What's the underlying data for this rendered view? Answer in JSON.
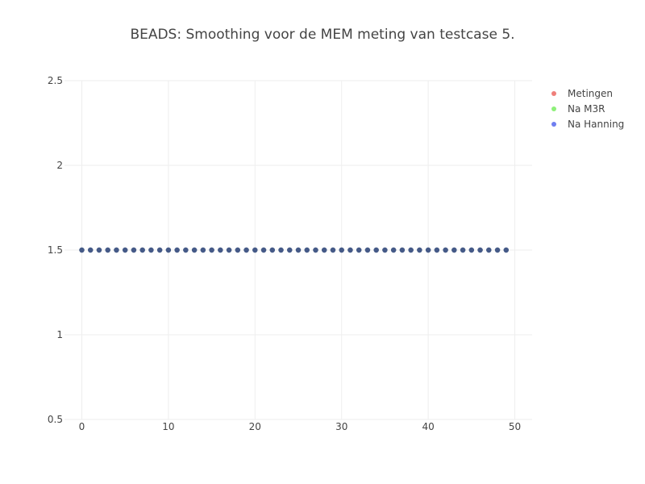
{
  "chart_data": {
    "type": "scatter",
    "title": "BEADS: Smoothing voor de MEM meting van testcase 5.",
    "xlabel": "",
    "ylabel": "",
    "xlim": [
      -2,
      52
    ],
    "ylim": [
      0.5,
      2.5
    ],
    "xticks": [
      "0",
      "10",
      "20",
      "30",
      "40",
      "50"
    ],
    "yticks": [
      "0.5",
      "1",
      "1.5",
      "2",
      "2.5"
    ],
    "grid": true,
    "legend_position": "top-right",
    "x": [
      0,
      1,
      2,
      3,
      4,
      5,
      6,
      7,
      8,
      9,
      10,
      11,
      12,
      13,
      14,
      15,
      16,
      17,
      18,
      19,
      20,
      21,
      22,
      23,
      24,
      25,
      26,
      27,
      28,
      29,
      30,
      31,
      32,
      33,
      34,
      35,
      36,
      37,
      38,
      39,
      40,
      41,
      42,
      43,
      44,
      45,
      46,
      47,
      48,
      49
    ],
    "series": [
      {
        "name": "Metingen",
        "color": "#ef7f7a",
        "values": [
          1.5,
          1.5,
          1.5,
          1.5,
          1.5,
          1.5,
          1.5,
          1.5,
          1.5,
          1.5,
          1.5,
          1.5,
          1.5,
          1.5,
          1.5,
          1.5,
          1.5,
          1.5,
          1.5,
          1.5,
          1.5,
          1.5,
          1.5,
          1.5,
          1.5,
          1.5,
          1.5,
          1.5,
          1.5,
          1.5,
          1.5,
          1.5,
          1.5,
          1.5,
          1.5,
          1.5,
          1.5,
          1.5,
          1.5,
          1.5,
          1.5,
          1.5,
          1.5,
          1.5,
          1.5,
          1.5,
          1.5,
          1.5,
          1.5,
          1.5
        ]
      },
      {
        "name": "Na M3R",
        "color": "#8ef07a",
        "values": [
          1.5,
          1.5,
          1.5,
          1.5,
          1.5,
          1.5,
          1.5,
          1.5,
          1.5,
          1.5,
          1.5,
          1.5,
          1.5,
          1.5,
          1.5,
          1.5,
          1.5,
          1.5,
          1.5,
          1.5,
          1.5,
          1.5,
          1.5,
          1.5,
          1.5,
          1.5,
          1.5,
          1.5,
          1.5,
          1.5,
          1.5,
          1.5,
          1.5,
          1.5,
          1.5,
          1.5,
          1.5,
          1.5,
          1.5,
          1.5,
          1.5,
          1.5,
          1.5,
          1.5,
          1.5,
          1.5,
          1.5,
          1.5,
          1.5,
          1.5
        ]
      },
      {
        "name": "Na Hanning",
        "color": "#6f7ef0",
        "values": [
          1.5,
          1.5,
          1.5,
          1.5,
          1.5,
          1.5,
          1.5,
          1.5,
          1.5,
          1.5,
          1.5,
          1.5,
          1.5,
          1.5,
          1.5,
          1.5,
          1.5,
          1.5,
          1.5,
          1.5,
          1.5,
          1.5,
          1.5,
          1.5,
          1.5,
          1.5,
          1.5,
          1.5,
          1.5,
          1.5,
          1.5,
          1.5,
          1.5,
          1.5,
          1.5,
          1.5,
          1.5,
          1.5,
          1.5,
          1.5,
          1.5,
          1.5,
          1.5,
          1.5,
          1.5,
          1.5,
          1.5,
          1.5,
          1.5,
          1.5
        ]
      }
    ],
    "overlap_marker_color": "#455a88"
  }
}
